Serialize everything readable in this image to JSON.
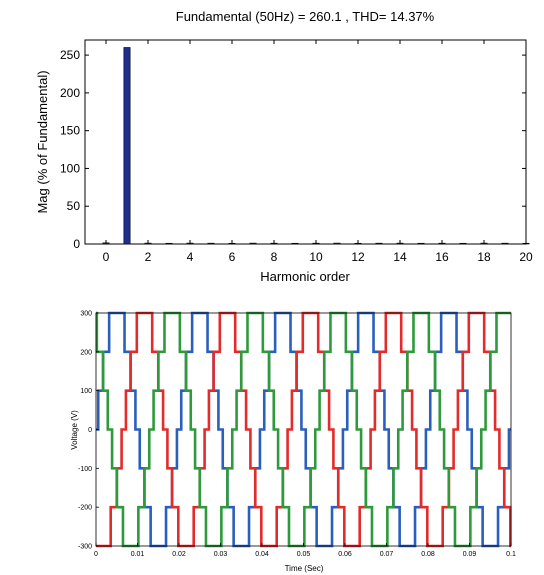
{
  "chart_data": [
    {
      "type": "bar",
      "title": "Fundamental (50Hz) = 260.1 , THD= 14.37%",
      "xlabel": "Harmonic order",
      "ylabel": "Mag (% of Fundamental)",
      "xlim": [
        -1,
        20
      ],
      "ylim": [
        0,
        270
      ],
      "xticks": [
        0,
        2,
        4,
        6,
        8,
        10,
        12,
        14,
        16,
        18,
        20
      ],
      "yticks": [
        0,
        50,
        100,
        150,
        200,
        250
      ],
      "x": [
        0,
        1,
        2,
        3,
        4,
        5,
        6,
        7,
        8,
        9,
        10,
        11,
        12,
        13,
        14,
        15,
        16,
        17,
        18,
        19,
        20
      ],
      "values": [
        1.5,
        260.1,
        1.2,
        1.0,
        1.2,
        1.1,
        1.0,
        1.2,
        1.1,
        1.0,
        1.1,
        1.2,
        1.0,
        1.1,
        1.2,
        1.0,
        1.1,
        1.0,
        1.2,
        1.1,
        1.0
      ],
      "bar_color": "#1f2f8f",
      "grid": false
    },
    {
      "type": "line",
      "title": "",
      "xlabel": "Time (Sec)",
      "ylabel": "Voltage (V)",
      "xlim": [
        0,
        0.1
      ],
      "ylim": [
        -300,
        300
      ],
      "xticks": [
        0,
        0.01,
        0.02,
        0.03,
        0.04,
        0.05,
        0.06,
        0.07,
        0.08,
        0.09,
        0.1
      ],
      "xtick_labels": [
        "0",
        "0.01",
        "0.02",
        "0.03",
        "0.04",
        "0.05",
        "0.06",
        "0.07",
        "0.08",
        "0.09",
        "0.1"
      ],
      "yticks": [
        300,
        200,
        100,
        0,
        -100,
        -200,
        -300
      ],
      "levels": [
        -300,
        -200,
        -100,
        0,
        100,
        200,
        300
      ],
      "frequency_hz": 50,
      "grid": false,
      "series": [
        {
          "phase_deg": 0,
          "color": "#2b5fbe"
        },
        {
          "phase_deg": -120,
          "color": "#e32b2b"
        },
        {
          "phase_deg": 120,
          "color": "#2f9a3c"
        }
      ]
    }
  ]
}
